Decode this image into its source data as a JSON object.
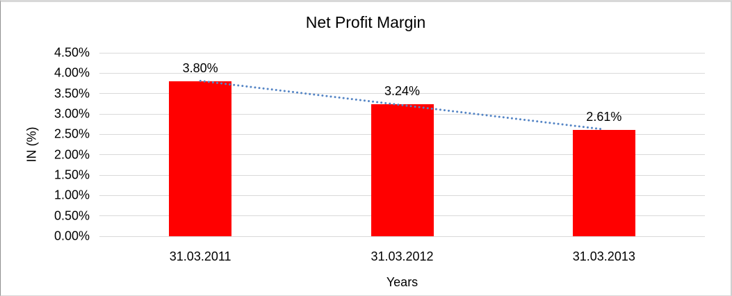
{
  "chart_data": {
    "type": "bar",
    "title": "Net Profit Margin",
    "xlabel": "Years",
    "ylabel": "IN (%)",
    "categories": [
      "31.03.2011",
      "31.03.2012",
      "31.03.2013"
    ],
    "values": [
      3.8,
      3.24,
      2.61
    ],
    "data_labels": [
      "3.80%",
      "3.24%",
      "2.61%"
    ],
    "y_ticks": [
      "4.50%",
      "4.00%",
      "3.50%",
      "3.00%",
      "2.50%",
      "2.00%",
      "1.50%",
      "1.00%",
      "0.50%",
      "0.00%"
    ],
    "ylim": [
      0,
      4.5
    ],
    "y_tick_step": 0.5,
    "grid": true,
    "legend": "none",
    "bar_color": "#FF0000",
    "gridline_color": "#D9D9D9",
    "text_color": "#000000",
    "trendline": {
      "type": "linear",
      "style": "dotted",
      "color": "#5585C5"
    }
  }
}
